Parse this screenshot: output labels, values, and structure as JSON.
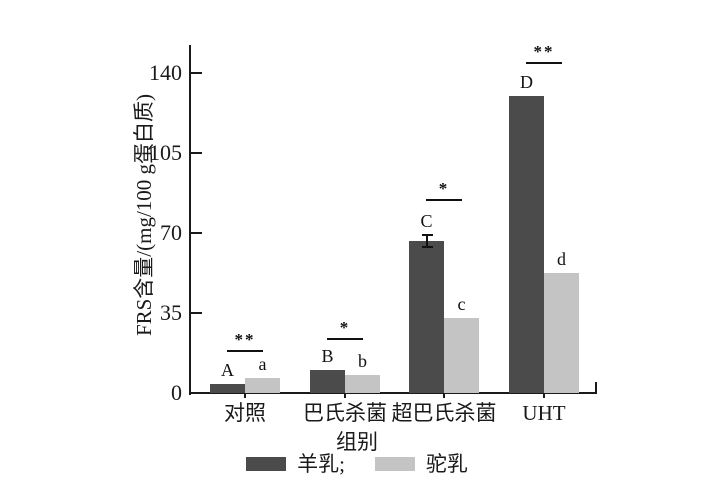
{
  "chart_data": {
    "type": "bar",
    "title": "",
    "categories": [
      "对照",
      "巴氏杀菌",
      "超巴氏杀菌",
      "UHT"
    ],
    "series": [
      {
        "name": "羊乳",
        "color": "#4b4b4b",
        "values": [
          4,
          10,
          66.5,
          130
        ],
        "point_labels": [
          "A",
          "B",
          "C",
          "D"
        ],
        "errors": [
          0,
          0,
          2.5,
          0
        ]
      },
      {
        "name": "驼乳",
        "color": "#c4c4c4",
        "values": [
          6.5,
          8,
          33,
          52.5
        ],
        "point_labels": [
          "a",
          "b",
          "c",
          "d"
        ],
        "errors": [
          0,
          0,
          0,
          0
        ]
      }
    ],
    "significance": [
      {
        "group": "对照",
        "label": "**",
        "line_value": 19
      },
      {
        "group": "巴氏杀菌",
        "label": "*",
        "line_value": 24
      },
      {
        "group": "超巴氏杀菌",
        "label": "*",
        "line_value": 85
      },
      {
        "group": "UHT",
        "label": "**",
        "line_value": 145
      }
    ],
    "xlabel": "组别",
    "ylabel": "FRS含量/(mg/100 g蛋白质)",
    "yticks": [
      0,
      35,
      70,
      105,
      140
    ],
    "ylim": [
      0,
      151
    ],
    "grid": false,
    "axis_color": "#1a1a1a",
    "legend": {
      "position": "bottom-center",
      "items": [
        {
          "label": "羊乳;",
          "color": "#4b4b4b"
        },
        {
          "label": "驼乳",
          "color": "#c4c4c4"
        }
      ]
    }
  }
}
